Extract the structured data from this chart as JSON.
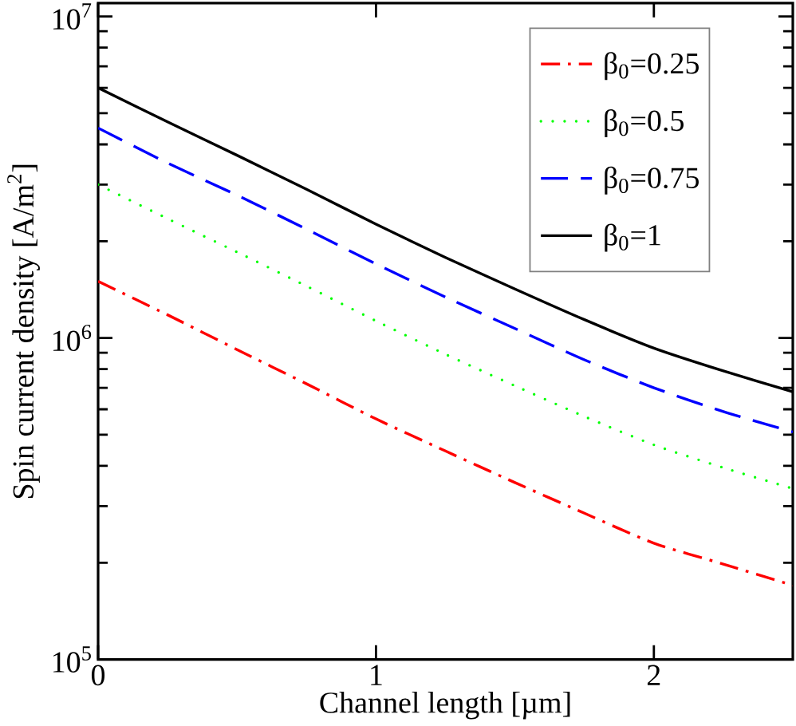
{
  "chart_data": {
    "type": "line",
    "xlabel": "Channel length [µm]",
    "ylabel": "Spin current density [A/m$^{2}$]",
    "x": [
      0,
      0.25,
      0.5,
      0.75,
      1,
      1.25,
      1.5,
      1.75,
      2,
      2.25,
      2.5
    ],
    "series": [
      {
        "name": "β$_{0}$=0.25",
        "color": "#ff0000",
        "line_style": "dashdot",
        "values": [
          1500000,
          1180000,
          920000,
          720000,
          560000,
          445000,
          355000,
          285000,
          230000,
          198000,
          170000
        ]
      },
      {
        "name": "β$_{0}$=0.5",
        "color": "#00ff00",
        "line_style": "dotted",
        "values": [
          3000000,
          2350000,
          1850000,
          1450000,
          1130000,
          890000,
          710000,
          570000,
          465000,
          395000,
          340000
        ]
      },
      {
        "name": "β$_{0}$=0.75",
        "color": "#0000ff",
        "line_style": "dashed",
        "values": [
          4500000,
          3500000,
          2780000,
          2180000,
          1700000,
          1340000,
          1070000,
          855000,
          700000,
          590000,
          510000
        ]
      },
      {
        "name": "β$_{0}$=1",
        "color": "#000000",
        "line_style": "solid",
        "values": [
          6000000,
          4700000,
          3700000,
          2900000,
          2260000,
          1780000,
          1420000,
          1140000,
          930000,
          790000,
          680000
        ]
      }
    ],
    "xlim": [
      0,
      2.5
    ],
    "ylim": [
      100000,
      11000000
    ],
    "xticks": [
      0,
      1,
      2
    ],
    "yticks": [
      {
        "value": 100000,
        "label": "10$^{5}$"
      },
      {
        "value": 1000000,
        "label": "10$^{6}$"
      },
      {
        "value": 10000000,
        "label": "10$^{7}$"
      }
    ],
    "log": "y",
    "legend": "top right"
  }
}
